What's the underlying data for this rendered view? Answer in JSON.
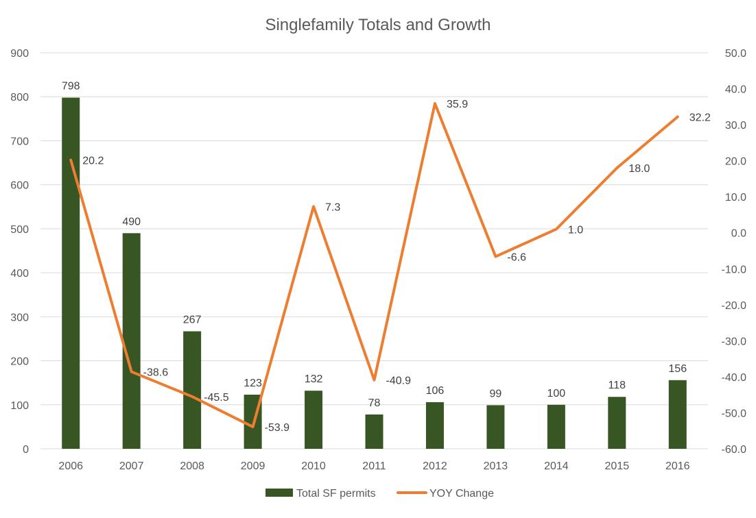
{
  "chart_data": {
    "type": "bar+line",
    "title": "Singlefamily Totals and Growth",
    "categories": [
      "2006",
      "2007",
      "2008",
      "2009",
      "2010",
      "2011",
      "2012",
      "2013",
      "2014",
      "2015",
      "2016"
    ],
    "series": [
      {
        "name": "Total SF permits",
        "type": "bar",
        "axis": "left",
        "color": "#375623",
        "values": [
          798,
          490,
          267,
          123,
          132,
          78,
          106,
          99,
          100,
          118,
          156
        ]
      },
      {
        "name": "YOY Change",
        "type": "line",
        "axis": "right",
        "color": "#ED7D31",
        "values": [
          20.2,
          -38.6,
          -45.5,
          -53.9,
          7.3,
          -40.9,
          35.9,
          -6.6,
          1.0,
          18.0,
          32.2
        ]
      }
    ],
    "y_left": {
      "range": [
        0,
        900
      ],
      "ticks": [
        "0",
        "100",
        "200",
        "300",
        "400",
        "500",
        "600",
        "700",
        "800",
        "900"
      ]
    },
    "y_right": {
      "range": [
        -60,
        50
      ],
      "ticks": [
        "-60.0",
        "-50.0",
        "-40.0",
        "-30.0",
        "-20.0",
        "-10.0",
        "0.0",
        "10.0",
        "20.0",
        "30.0",
        "40.0",
        "50.0"
      ]
    },
    "grid": true,
    "legend_position": "bottom"
  }
}
